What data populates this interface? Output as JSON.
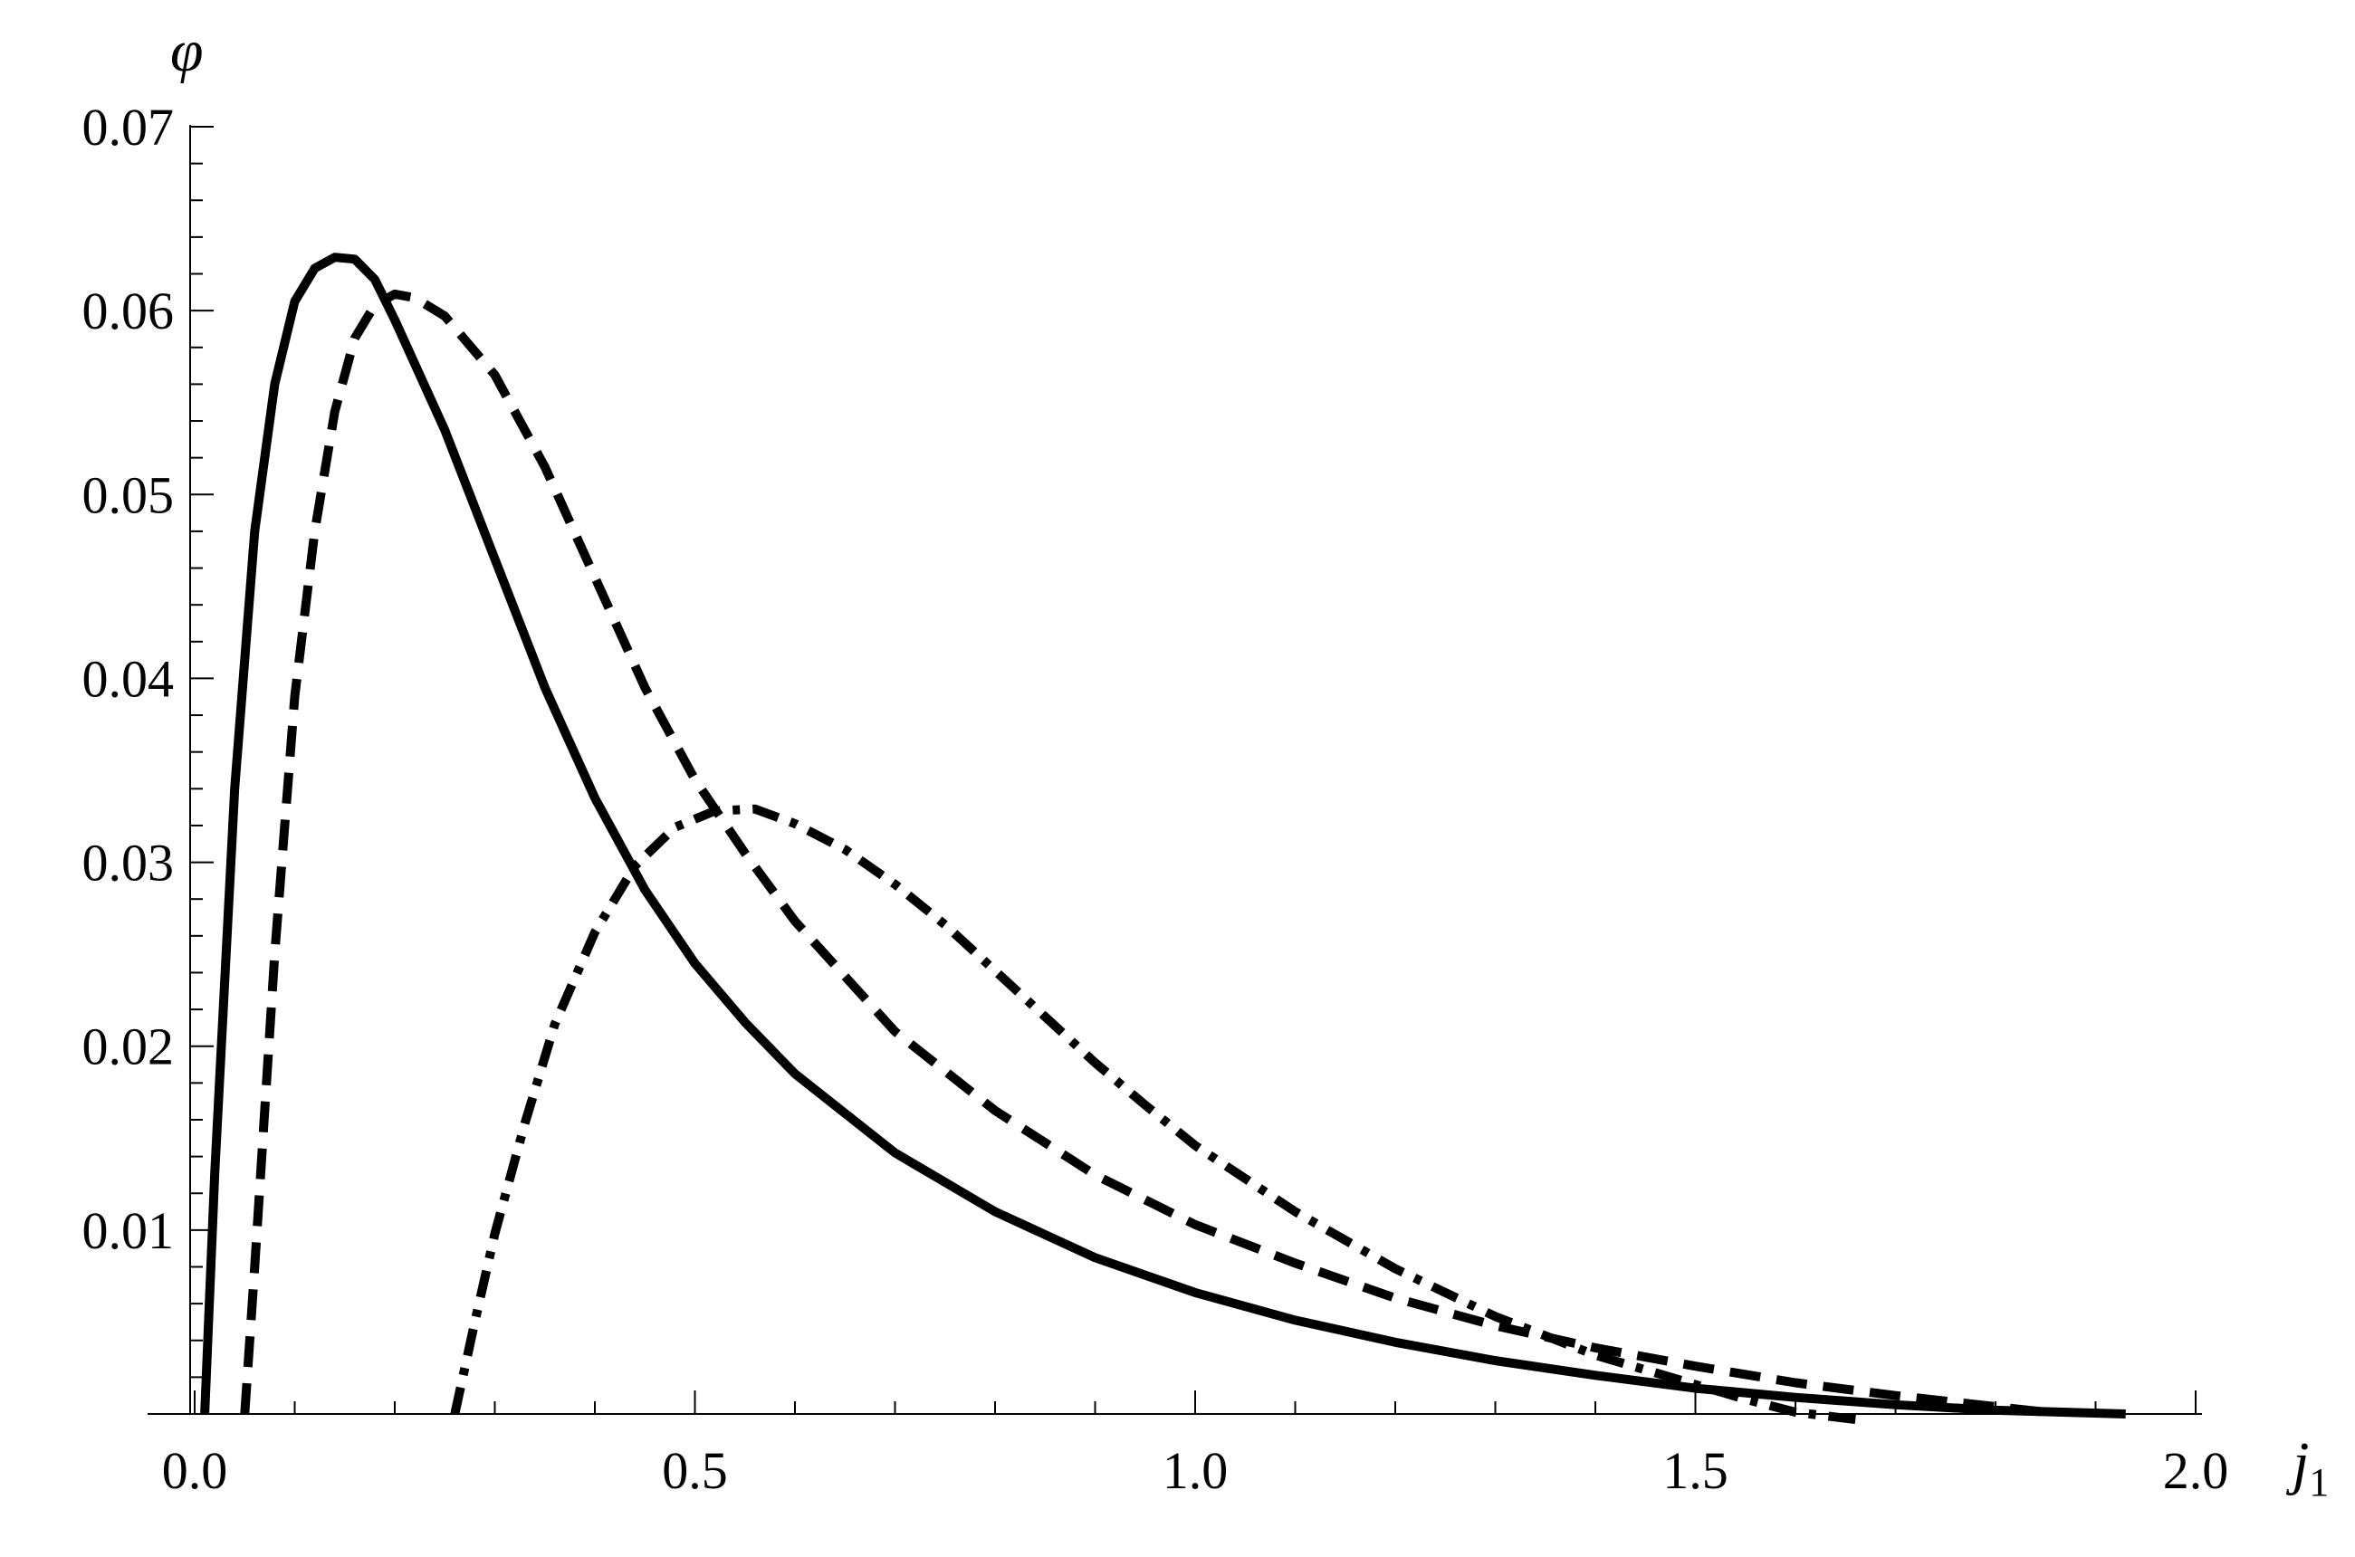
{
  "chart_data": {
    "type": "line",
    "xlabel": "j1",
    "xlabel_main": "j",
    "xlabel_sub": "1",
    "ylabel": "φ",
    "xlim": [
      0,
      2.0
    ],
    "ylim": [
      0,
      0.07
    ],
    "x_ticks": [
      "0.0",
      "0.5",
      "1.0",
      "1.5",
      "2.0"
    ],
    "x_tick_values": [
      0,
      0.5,
      1.0,
      1.5,
      2.0
    ],
    "y_ticks": [
      "0.01",
      "0.02",
      "0.03",
      "0.04",
      "0.05",
      "0.06",
      "0.07"
    ],
    "y_tick_values": [
      0.01,
      0.02,
      0.03,
      0.04,
      0.05,
      0.06,
      0.07
    ],
    "grid": false,
    "series": [
      {
        "style": "solid",
        "color": "#000000",
        "points": [
          [
            0.01,
            0.0
          ],
          [
            0.02,
            0.013
          ],
          [
            0.04,
            0.034
          ],
          [
            0.06,
            0.048
          ],
          [
            0.08,
            0.056
          ],
          [
            0.1,
            0.0605
          ],
          [
            0.12,
            0.0623
          ],
          [
            0.14,
            0.0629
          ],
          [
            0.16,
            0.0628
          ],
          [
            0.18,
            0.0617
          ],
          [
            0.2,
            0.0595
          ],
          [
            0.25,
            0.0535
          ],
          [
            0.3,
            0.0465
          ],
          [
            0.35,
            0.0395
          ],
          [
            0.4,
            0.0335
          ],
          [
            0.45,
            0.0285
          ],
          [
            0.5,
            0.0245
          ],
          [
            0.55,
            0.0213
          ],
          [
            0.6,
            0.0185
          ],
          [
            0.7,
            0.0142
          ],
          [
            0.8,
            0.011
          ],
          [
            0.9,
            0.0085
          ],
          [
            1.0,
            0.0066
          ],
          [
            1.1,
            0.0051
          ],
          [
            1.2,
            0.0039
          ],
          [
            1.3,
            0.0029
          ],
          [
            1.4,
            0.0021
          ],
          [
            1.5,
            0.0014
          ],
          [
            1.6,
            0.0009
          ],
          [
            1.7,
            0.0005
          ],
          [
            1.8,
            0.0002
          ],
          [
            1.93,
            0.0
          ]
        ]
      },
      {
        "style": "dashed",
        "color": "#000000",
        "points": [
          [
            0.05,
            0.0
          ],
          [
            0.06,
            0.008
          ],
          [
            0.08,
            0.025
          ],
          [
            0.1,
            0.039
          ],
          [
            0.12,
            0.048
          ],
          [
            0.14,
            0.0545
          ],
          [
            0.16,
            0.0585
          ],
          [
            0.18,
            0.0603
          ],
          [
            0.2,
            0.0609
          ],
          [
            0.22,
            0.0607
          ],
          [
            0.25,
            0.0597
          ],
          [
            0.3,
            0.0565
          ],
          [
            0.35,
            0.0515
          ],
          [
            0.4,
            0.0455
          ],
          [
            0.45,
            0.0395
          ],
          [
            0.5,
            0.0345
          ],
          [
            0.55,
            0.0305
          ],
          [
            0.6,
            0.0268
          ],
          [
            0.7,
            0.0208
          ],
          [
            0.8,
            0.0165
          ],
          [
            0.9,
            0.013
          ],
          [
            1.0,
            0.0103
          ],
          [
            1.1,
            0.0082
          ],
          [
            1.2,
            0.0063
          ],
          [
            1.3,
            0.0048
          ],
          [
            1.4,
            0.0036
          ],
          [
            1.5,
            0.0026
          ],
          [
            1.6,
            0.0017
          ],
          [
            1.7,
            0.001
          ],
          [
            1.8,
            0.0004
          ],
          [
            1.85,
            0.0001
          ]
        ]
      },
      {
        "style": "dashdot",
        "color": "#000000",
        "points": [
          [
            0.26,
            0.0
          ],
          [
            0.28,
            0.005
          ],
          [
            0.3,
            0.0098
          ],
          [
            0.33,
            0.0158
          ],
          [
            0.36,
            0.0212
          ],
          [
            0.4,
            0.0262
          ],
          [
            0.44,
            0.0298
          ],
          [
            0.48,
            0.0319
          ],
          [
            0.52,
            0.0328
          ],
          [
            0.56,
            0.0329
          ],
          [
            0.6,
            0.0321
          ],
          [
            0.65,
            0.0307
          ],
          [
            0.7,
            0.0288
          ],
          [
            0.75,
            0.0266
          ],
          [
            0.8,
            0.0241
          ],
          [
            0.85,
            0.0216
          ],
          [
            0.9,
            0.0191
          ],
          [
            0.95,
            0.0168
          ],
          [
            1.0,
            0.0146
          ],
          [
            1.1,
            0.011
          ],
          [
            1.2,
            0.0079
          ],
          [
            1.3,
            0.0053
          ],
          [
            1.4,
            0.0032
          ],
          [
            1.5,
            0.0016
          ],
          [
            1.55,
            0.0008
          ],
          [
            1.6,
            0.0001
          ],
          [
            1.66,
            -0.0003
          ]
        ]
      }
    ]
  }
}
